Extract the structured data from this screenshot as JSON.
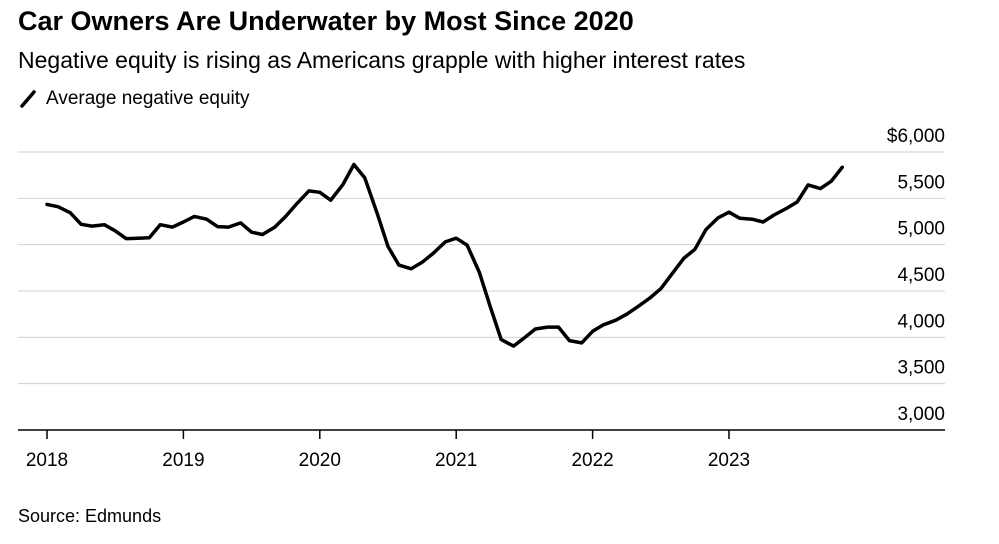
{
  "header": {
    "title": "Car Owners Are Underwater by Most Since 2020",
    "subtitle": "Negative equity is rising as Americans grapple with higher interest rates"
  },
  "footer": {
    "source": "Source: Edmunds"
  },
  "chart_data": {
    "type": "line",
    "title": "Car Owners Are Underwater by Most Since 2020",
    "subtitle": "Negative equity is rising as Americans grapple with higher interest rates",
    "xlabel": "",
    "ylabel": "",
    "ylim": [
      3000,
      6000
    ],
    "xlim": [
      2018,
      2024.6
    ],
    "grid": true,
    "legend_position": "top-left",
    "y_ticks": [
      {
        "value": 6000,
        "label": "$6,000"
      },
      {
        "value": 5500,
        "label": "5,500"
      },
      {
        "value": 5000,
        "label": "5,000"
      },
      {
        "value": 4500,
        "label": "4,500"
      },
      {
        "value": 4000,
        "label": "4,000"
      },
      {
        "value": 3500,
        "label": "3,500"
      },
      {
        "value": 3000,
        "label": "3,000"
      }
    ],
    "x_ticks": [
      {
        "value": 2018,
        "label": "2018"
      },
      {
        "value": 2019,
        "label": "2019"
      },
      {
        "value": 2020,
        "label": "2020"
      },
      {
        "value": 2021,
        "label": "2021"
      },
      {
        "value": 2022,
        "label": "2022"
      },
      {
        "value": 2023,
        "label": "2023"
      }
    ],
    "series": [
      {
        "name": "Average negative equity",
        "color": "#000000",
        "points": [
          [
            2018.0,
            5435
          ],
          [
            2018.08,
            5410
          ],
          [
            2018.17,
            5345
          ],
          [
            2018.25,
            5220
          ],
          [
            2018.33,
            5200
          ],
          [
            2018.42,
            5215
          ],
          [
            2018.5,
            5150
          ],
          [
            2018.58,
            5065
          ],
          [
            2018.67,
            5070
          ],
          [
            2018.75,
            5075
          ],
          [
            2018.83,
            5215
          ],
          [
            2018.92,
            5190
          ],
          [
            2019.0,
            5245
          ],
          [
            2019.08,
            5305
          ],
          [
            2019.17,
            5275
          ],
          [
            2019.25,
            5195
          ],
          [
            2019.33,
            5190
          ],
          [
            2019.42,
            5235
          ],
          [
            2019.5,
            5135
          ],
          [
            2019.58,
            5110
          ],
          [
            2019.67,
            5190
          ],
          [
            2019.75,
            5305
          ],
          [
            2019.83,
            5440
          ],
          [
            2019.92,
            5580
          ],
          [
            2020.0,
            5565
          ],
          [
            2020.08,
            5480
          ],
          [
            2020.17,
            5650
          ],
          [
            2020.25,
            5865
          ],
          [
            2020.33,
            5720
          ],
          [
            2020.42,
            5340
          ],
          [
            2020.5,
            4980
          ],
          [
            2020.58,
            4780
          ],
          [
            2020.67,
            4740
          ],
          [
            2020.75,
            4810
          ],
          [
            2020.83,
            4905
          ],
          [
            2020.92,
            5030
          ],
          [
            2021.0,
            5070
          ],
          [
            2021.08,
            4995
          ],
          [
            2021.17,
            4700
          ],
          [
            2021.25,
            4330
          ],
          [
            2021.33,
            3975
          ],
          [
            2021.42,
            3905
          ],
          [
            2021.5,
            3995
          ],
          [
            2021.58,
            4090
          ],
          [
            2021.67,
            4110
          ],
          [
            2021.75,
            4110
          ],
          [
            2021.83,
            3965
          ],
          [
            2021.92,
            3940
          ],
          [
            2022.0,
            4065
          ],
          [
            2022.08,
            4135
          ],
          [
            2022.17,
            4185
          ],
          [
            2022.25,
            4250
          ],
          [
            2022.33,
            4330
          ],
          [
            2022.42,
            4425
          ],
          [
            2022.5,
            4525
          ],
          [
            2022.58,
            4680
          ],
          [
            2022.67,
            4855
          ],
          [
            2022.75,
            4950
          ],
          [
            2022.83,
            5160
          ],
          [
            2022.92,
            5290
          ],
          [
            2023.0,
            5350
          ],
          [
            2023.08,
            5285
          ],
          [
            2023.17,
            5275
          ],
          [
            2023.25,
            5245
          ],
          [
            2023.33,
            5320
          ],
          [
            2023.42,
            5390
          ],
          [
            2023.5,
            5460
          ],
          [
            2023.58,
            5645
          ],
          [
            2023.67,
            5605
          ],
          [
            2023.75,
            5685
          ],
          [
            2023.83,
            5835
          ]
        ]
      }
    ]
  }
}
